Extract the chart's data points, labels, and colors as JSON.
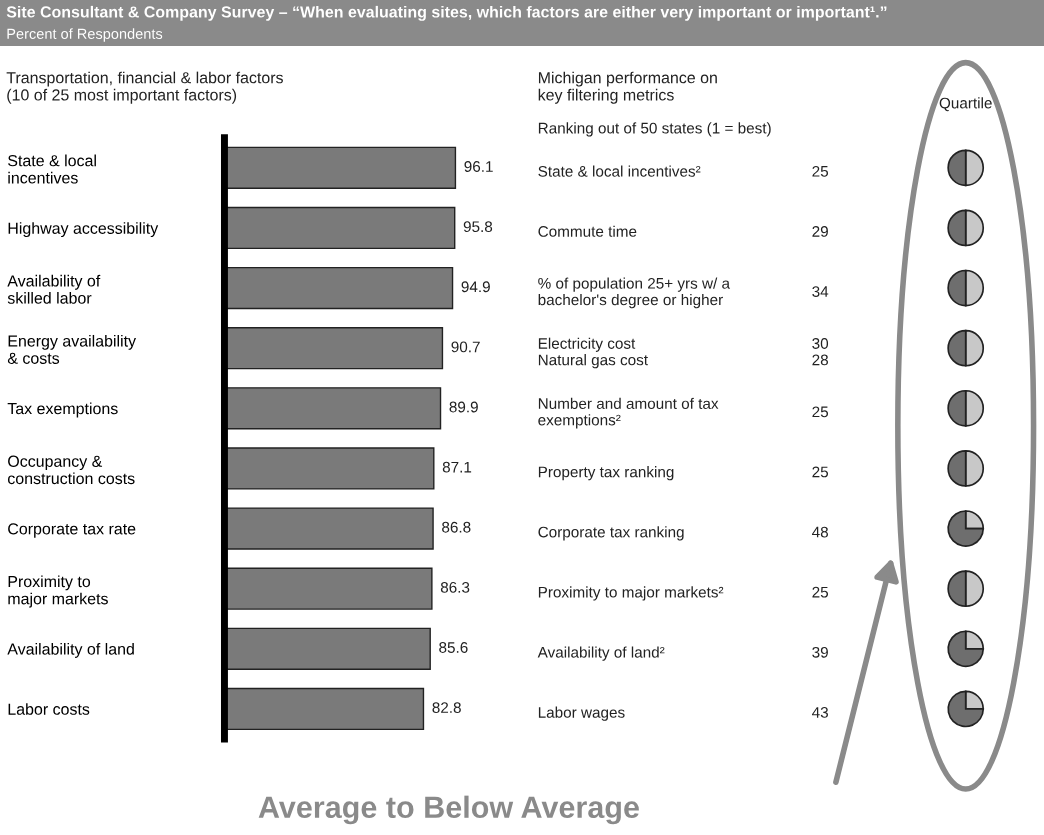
{
  "chart_data": [
    {
      "type": "bar",
      "orientation": "horizontal",
      "title": "Site Consultant & Company Survey – “When evaluating sites, which factors are either very important or important¹.”",
      "subtitle": "Percent of Respondents",
      "annotations": [
        "Transportation, financial & labor factors\n(10 of 25 most important factors)"
      ],
      "categories": [
        "State & local\nincentives",
        "Highway accessibility",
        "Availability of\nskilled labor",
        "Energy availability\n& costs",
        "Tax exemptions",
        "Occupancy &\nconstruction costs",
        "Corporate tax rate",
        "Proximity to\nmajor markets",
        "Availability of land",
        "Labor costs"
      ],
      "values": [
        96.1,
        95.8,
        94.9,
        90.7,
        89.9,
        87.1,
        86.8,
        86.3,
        85.6,
        82.8
      ],
      "color": "#7a7a7a",
      "data_labels": true,
      "tick_labels": "y"
    },
    {
      "type": "other",
      "title": "Michigan performance on\nkey filtering metrics",
      "subtitle": "Ranking out of 50 states (1 = best)",
      "annotations": [
        "Quartile",
        "Average to Below Average"
      ],
      "categories": [
        "State & local incentives²",
        "Commute time",
        "% of population 25+ yrs w/ a\nbachelor's degree or higher",
        "Electricity cost\nNatural gas cost",
        "Number and amount of tax\nexemptions²",
        "Property tax ranking",
        "Corporate tax ranking",
        "Proximity to major markets²",
        "Availability of land²",
        "Labor wages"
      ],
      "value_labels": [
        "25",
        "29",
        "34",
        "30\n28",
        "25",
        "25",
        "48",
        "25",
        "39",
        "43"
      ]
    },
    {
      "type": "pie",
      "categories": [
        null,
        null
      ],
      "values": [
        50,
        50
      ],
      "colors": [
        "#c8c8c8",
        "#6e6e6e"
      ]
    },
    {
      "type": "pie",
      "categories": [
        null,
        null
      ],
      "values": [
        50,
        50
      ],
      "colors": [
        "#c8c8c8",
        "#6e6e6e"
      ]
    },
    {
      "type": "pie",
      "categories": [
        null,
        null
      ],
      "values": [
        50,
        50
      ],
      "colors": [
        "#c8c8c8",
        "#6e6e6e"
      ]
    },
    {
      "type": "pie",
      "categories": [
        null,
        null
      ],
      "values": [
        50,
        50
      ],
      "colors": [
        "#c8c8c8",
        "#6e6e6e"
      ]
    },
    {
      "type": "pie",
      "categories": [
        null,
        null
      ],
      "values": [
        50,
        50
      ],
      "colors": [
        "#c8c8c8",
        "#6e6e6e"
      ]
    },
    {
      "type": "pie",
      "categories": [
        null,
        null
      ],
      "values": [
        50,
        50
      ],
      "colors": [
        "#c8c8c8",
        "#6e6e6e"
      ]
    },
    {
      "type": "pie",
      "categories": [
        null,
        null
      ],
      "values": [
        25,
        75
      ],
      "colors": [
        "#c8c8c8",
        "#6e6e6e"
      ]
    },
    {
      "type": "pie",
      "categories": [
        null,
        null
      ],
      "values": [
        50,
        50
      ],
      "colors": [
        "#c8c8c8",
        "#6e6e6e"
      ]
    },
    {
      "type": "pie",
      "categories": [
        null,
        null
      ],
      "values": [
        25,
        75
      ],
      "colors": [
        "#c8c8c8",
        "#6e6e6e"
      ]
    },
    {
      "type": "pie",
      "categories": [
        null,
        null
      ],
      "values": [
        25,
        75
      ],
      "colors": [
        "#c8c8c8",
        "#6e6e6e"
      ]
    }
  ]
}
